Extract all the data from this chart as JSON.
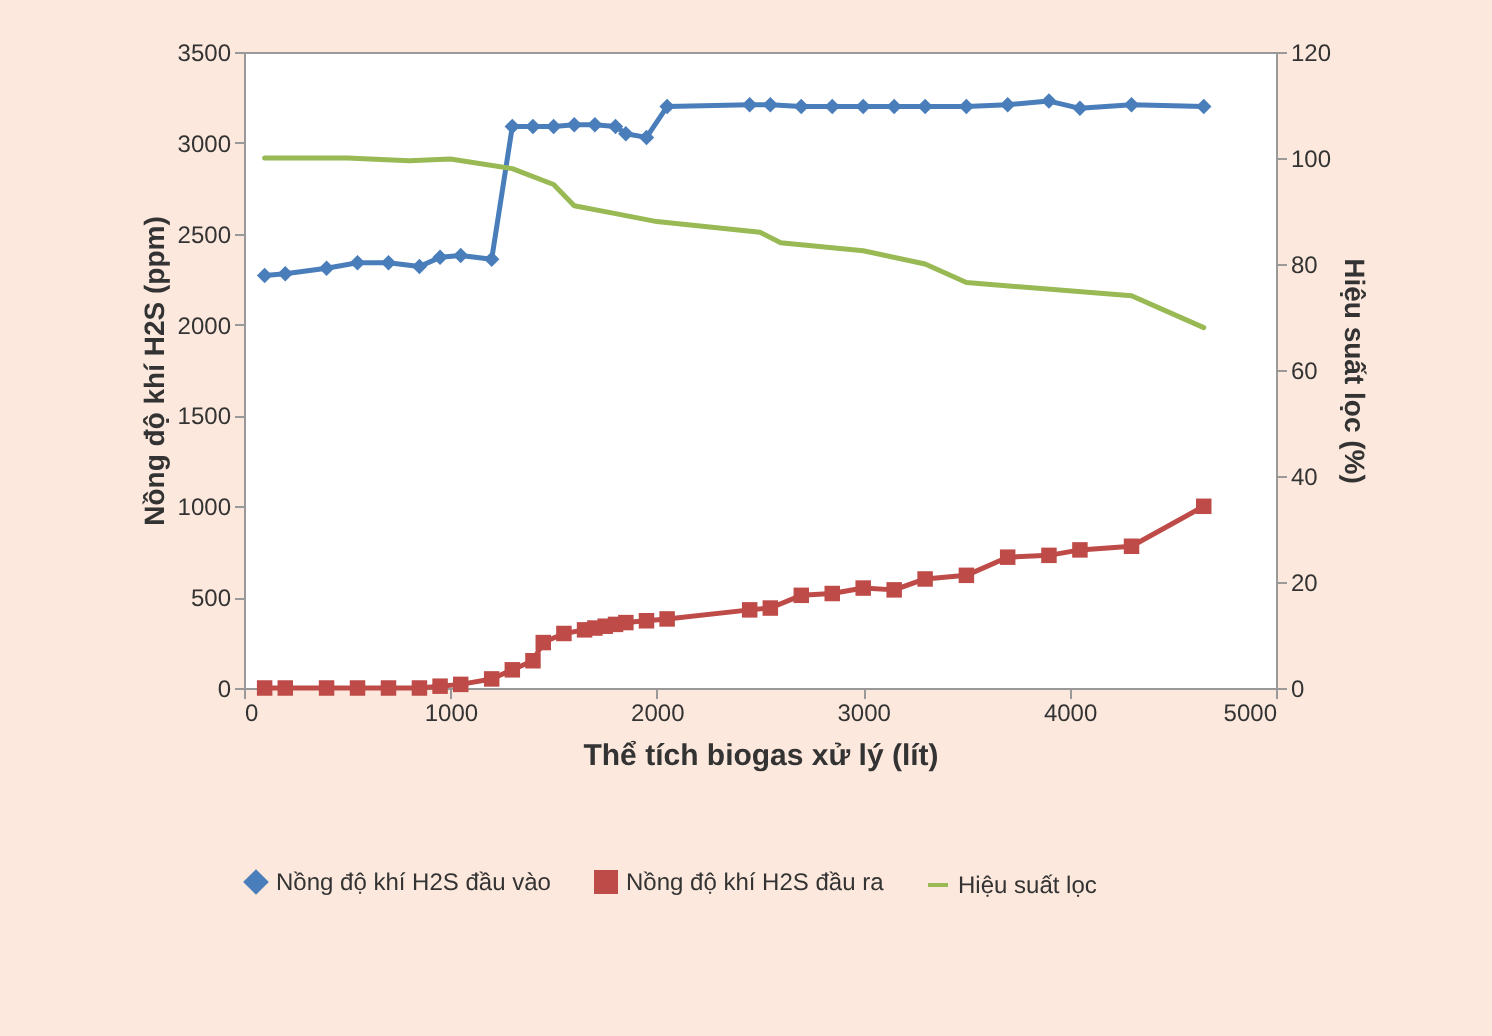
{
  "chart_data": {
    "type": "line",
    "xlabel": "Thể tích biogas xử lý (lít)",
    "ylabel": "Nồng độ khí H2S (ppm)",
    "y2label": "Hiệu suất lọc (%)",
    "xlim": [
      0,
      5000
    ],
    "xticks": [
      0,
      1000,
      2000,
      3000,
      4000,
      5000
    ],
    "ylim": [
      0,
      3500
    ],
    "yticks": [
      0,
      500,
      1000,
      1500,
      2000,
      2500,
      3000,
      3500
    ],
    "y2lim": [
      0,
      120
    ],
    "y2ticks": [
      0,
      20,
      40,
      60,
      80,
      100,
      120
    ],
    "legend": "bottom",
    "grid": false,
    "line_style": "solid",
    "series": [
      {
        "name": "Nồng độ khí H2S đầu vào",
        "color": "#4a7ebb",
        "marker": "diamond",
        "x": [
          100,
          200,
          400,
          550,
          700,
          850,
          950,
          1050,
          1200,
          1300,
          1400,
          1500,
          1600,
          1700,
          1800,
          1850,
          1950,
          2050,
          2450,
          2550,
          2700,
          2850,
          3000,
          3150,
          3300,
          3500,
          3700,
          3900,
          4050,
          4300,
          4650
        ],
        "values": [
          2270,
          2280,
          2310,
          2340,
          2340,
          2320,
          2370,
          2380,
          2360,
          3090,
          3090,
          3090,
          3100,
          3100,
          3090,
          3050,
          3030,
          3200,
          3210,
          3210,
          3200,
          3200,
          3200,
          3200,
          3200,
          3200,
          3210,
          3230,
          3190,
          3210,
          3200
        ]
      },
      {
        "name": "Nồng độ khí H2S đầu ra",
        "color": "#be4b48",
        "marker": "square",
        "x": [
          100,
          200,
          400,
          550,
          700,
          850,
          950,
          1050,
          1200,
          1300,
          1400,
          1450,
          1550,
          1650,
          1700,
          1750,
          1800,
          1850,
          1950,
          2050,
          2450,
          2550,
          2700,
          2850,
          3000,
          3150,
          3300,
          3500,
          3700,
          3900,
          4050,
          4300,
          4650
        ],
        "values": [
          0,
          0,
          0,
          0,
          0,
          0,
          10,
          20,
          50,
          100,
          150,
          250,
          300,
          320,
          330,
          340,
          350,
          360,
          370,
          380,
          430,
          440,
          510,
          520,
          550,
          540,
          600,
          620,
          720,
          730,
          760,
          780,
          1000
        ]
      },
      {
        "name": "Hiệu suất lọc",
        "color": "#98b954",
        "marker": "none",
        "axis": "y2",
        "x": [
          100,
          500,
          800,
          1000,
          1300,
          1500,
          1600,
          1800,
          2000,
          2500,
          2600,
          3000,
          3300,
          3500,
          4300,
          4650
        ],
        "values": [
          100,
          100,
          99.5,
          99.8,
          98,
          95,
          91,
          89.5,
          88,
          86,
          84,
          82.5,
          80,
          76.5,
          74,
          68
        ]
      }
    ]
  }
}
